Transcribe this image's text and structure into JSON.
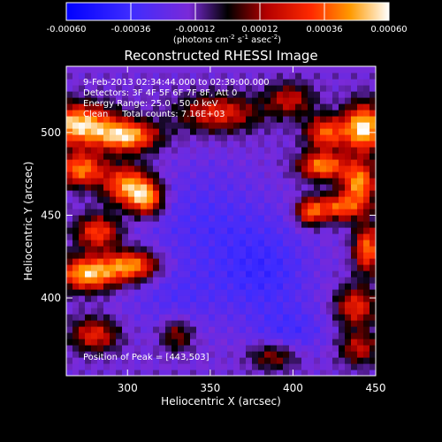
{
  "chart_data": {
    "type": "heatmap",
    "title": "Reconstructed RHESSI Image",
    "xlabel": "Heliocentric X (arcsec)",
    "ylabel": "Heliocentric Y (arcsec)",
    "xlim": [
      263,
      450
    ],
    "ylim": [
      353,
      540
    ],
    "x_ticks": [
      300,
      350,
      400,
      450
    ],
    "y_ticks": [
      400,
      450,
      500
    ],
    "colorbar": {
      "range": [
        -0.0006,
        0.0006
      ],
      "ticks": [
        "-0.00060",
        "-0.00036",
        "-0.00012",
        "0.00012",
        "0.00036",
        "0.00060"
      ],
      "units_label": "(photons cm",
      "units_exp1": "-2",
      "units_mid1": " s",
      "units_exp2": "-1",
      "units_mid2": " asec",
      "units_exp3": "-2",
      "units_end": ")"
    },
    "annotations": [
      "9-Feb-2013 02:34:44.000 to 02:39:00.000",
      "Detectors: 3F 4F 5F 6F 7F 8F, Att 0",
      "Energy Range: 25.0 - 50.0 keV",
      "Clean     Total counts: 7.16E+03",
      "Position of Peak = [443,503]"
    ],
    "peak_position": [
      443,
      503
    ],
    "hot_regions": [
      {
        "x": 270,
        "y": 505,
        "rx": 22,
        "ry": 12,
        "v": 0.00056
      },
      {
        "x": 300,
        "y": 498,
        "rx": 18,
        "ry": 9,
        "v": 0.0005
      },
      {
        "x": 272,
        "y": 478,
        "rx": 14,
        "ry": 10,
        "v": 0.00042
      },
      {
        "x": 300,
        "y": 468,
        "rx": 14,
        "ry": 12,
        "v": 0.00046
      },
      {
        "x": 312,
        "y": 460,
        "rx": 10,
        "ry": 10,
        "v": 0.0004
      },
      {
        "x": 282,
        "y": 440,
        "rx": 13,
        "ry": 10,
        "v": 0.00034
      },
      {
        "x": 276,
        "y": 415,
        "rx": 18,
        "ry": 10,
        "v": 0.00052
      },
      {
        "x": 303,
        "y": 420,
        "rx": 16,
        "ry": 9,
        "v": 0.00044
      },
      {
        "x": 280,
        "y": 378,
        "rx": 14,
        "ry": 10,
        "v": 0.00026
      },
      {
        "x": 355,
        "y": 512,
        "rx": 24,
        "ry": 11,
        "v": 0.00026
      },
      {
        "x": 398,
        "y": 520,
        "rx": 14,
        "ry": 10,
        "v": 0.00018
      },
      {
        "x": 443,
        "y": 503,
        "rx": 12,
        "ry": 14,
        "v": 0.0006
      },
      {
        "x": 420,
        "y": 500,
        "rx": 12,
        "ry": 10,
        "v": 0.00036
      },
      {
        "x": 418,
        "y": 480,
        "rx": 14,
        "ry": 8,
        "v": 0.00044
      },
      {
        "x": 440,
        "y": 470,
        "rx": 10,
        "ry": 12,
        "v": 0.00046
      },
      {
        "x": 428,
        "y": 455,
        "rx": 16,
        "ry": 8,
        "v": 0.00036
      },
      {
        "x": 410,
        "y": 452,
        "rx": 8,
        "ry": 8,
        "v": 0.00028
      },
      {
        "x": 445,
        "y": 430,
        "rx": 8,
        "ry": 14,
        "v": 0.0004
      },
      {
        "x": 438,
        "y": 395,
        "rx": 12,
        "ry": 12,
        "v": 0.00028
      },
      {
        "x": 440,
        "y": 370,
        "rx": 12,
        "ry": 10,
        "v": 0.00018
      },
      {
        "x": 330,
        "y": 378,
        "rx": 10,
        "ry": 10,
        "v": 0.00014
      },
      {
        "x": 388,
        "y": 365,
        "rx": 14,
        "ry": 8,
        "v": 0.00014
      }
    ],
    "cold_regions": [
      {
        "x": 345,
        "y": 448,
        "rx": 40,
        "ry": 30,
        "v": -0.0003
      },
      {
        "x": 382,
        "y": 415,
        "rx": 30,
        "ry": 30,
        "v": -0.00036
      },
      {
        "x": 330,
        "y": 400,
        "rx": 26,
        "ry": 22,
        "v": -0.00028
      },
      {
        "x": 352,
        "y": 478,
        "rx": 20,
        "ry": 12,
        "v": -0.00018
      },
      {
        "x": 400,
        "y": 380,
        "rx": 22,
        "ry": 14,
        "v": -0.0003
      },
      {
        "x": 300,
        "y": 395,
        "rx": 16,
        "ry": 12,
        "v": -0.00018
      }
    ]
  }
}
